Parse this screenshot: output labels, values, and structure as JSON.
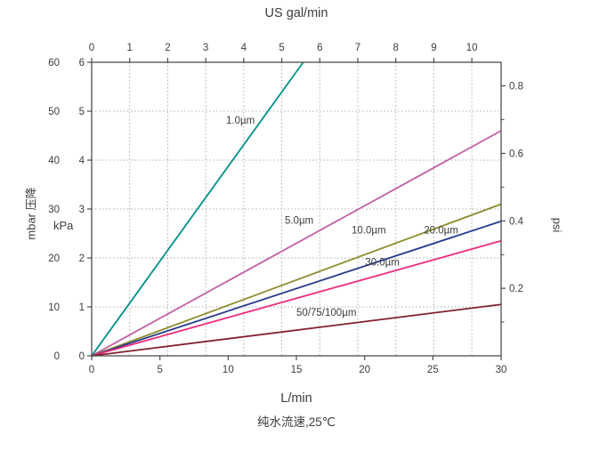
{
  "chart_data": {
    "type": "line",
    "title": "US gal/min",
    "subtitle": "纯水流速,25℃",
    "axes": {
      "x_bottom": {
        "label": "L/min",
        "min": 0,
        "max": 30,
        "ticks": [
          0,
          5,
          10,
          15,
          20,
          25,
          30
        ],
        "tick_labels": [
          "0",
          "5",
          "10",
          "15",
          "20",
          "25",
          "30"
        ]
      },
      "x_top": {
        "label": "US gal/min",
        "min": 0,
        "max": 10.77,
        "ticks": [
          0,
          1,
          2,
          3,
          4,
          5,
          6,
          7,
          8,
          9,
          10
        ],
        "tick_labels": [
          "0",
          "1",
          "2",
          "3",
          "4",
          "5",
          "6",
          "7",
          "8",
          "9",
          "10"
        ]
      },
      "y_left_kpa": {
        "label": "kPa",
        "min": 0,
        "max": 6,
        "ticks": [
          0,
          1,
          2,
          3,
          4,
          5,
          6
        ],
        "tick_labels": [
          "0",
          "1",
          "2",
          "3",
          "4",
          "5",
          "6"
        ]
      },
      "y_left_mbar": {
        "label": "mbar 压降",
        "min": 0,
        "max": 60,
        "ticks": [
          0,
          10,
          20,
          30,
          40,
          50,
          60
        ],
        "tick_labels": [
          "0",
          "10",
          "20",
          "30",
          "40",
          "50",
          "60"
        ]
      },
      "y_right_psi": {
        "label": "psi",
        "min": 0,
        "max": 0.87,
        "major_ticks": [
          0.2,
          0.4,
          0.6,
          0.8
        ],
        "major_tick_labels": [
          "0.2",
          "0.4",
          "0.6",
          "0.8"
        ],
        "minor_ticks": [
          0.1,
          0.3,
          0.5,
          0.7
        ]
      }
    },
    "grid": {
      "vertical_from": "x_top",
      "horizontal_from": "y_left_kpa",
      "style": "dotted"
    },
    "series": [
      {
        "name": "1.0µm",
        "color": "#00908C",
        "points": [
          [
            0,
            0
          ],
          [
            15.5,
            6
          ]
        ],
        "label_pos": [
          10.9,
          4.75
        ]
      },
      {
        "name": "5.0µm",
        "color": "#C25FA5",
        "points": [
          [
            0,
            0
          ],
          [
            30,
            4.6
          ]
        ],
        "label_pos": [
          15.2,
          2.7
        ]
      },
      {
        "name": "10.0µm",
        "color": "#8C8C2E",
        "points": [
          [
            0,
            0
          ],
          [
            30,
            3.1
          ]
        ],
        "label_pos": [
          20.3,
          2.5
        ]
      },
      {
        "name": "20.0µm",
        "color": "#27398C",
        "points": [
          [
            0,
            0
          ],
          [
            30,
            2.75
          ]
        ],
        "label_pos": [
          25.6,
          2.5
        ]
      },
      {
        "name": "30.0µm",
        "color": "#EF2B7C",
        "points": [
          [
            0,
            0
          ],
          [
            30,
            2.35
          ]
        ],
        "label_pos": [
          21.3,
          1.85
        ]
      },
      {
        "name": "50/75/100µm",
        "color": "#80202E",
        "points": [
          [
            0,
            0
          ],
          [
            30,
            1.05
          ]
        ],
        "label_pos": [
          17.2,
          0.82
        ]
      }
    ],
    "colors": {
      "axis": "#4d4d4d",
      "grid": "#adadad",
      "text": "#3c3c3c",
      "background": "#ffffff"
    }
  }
}
